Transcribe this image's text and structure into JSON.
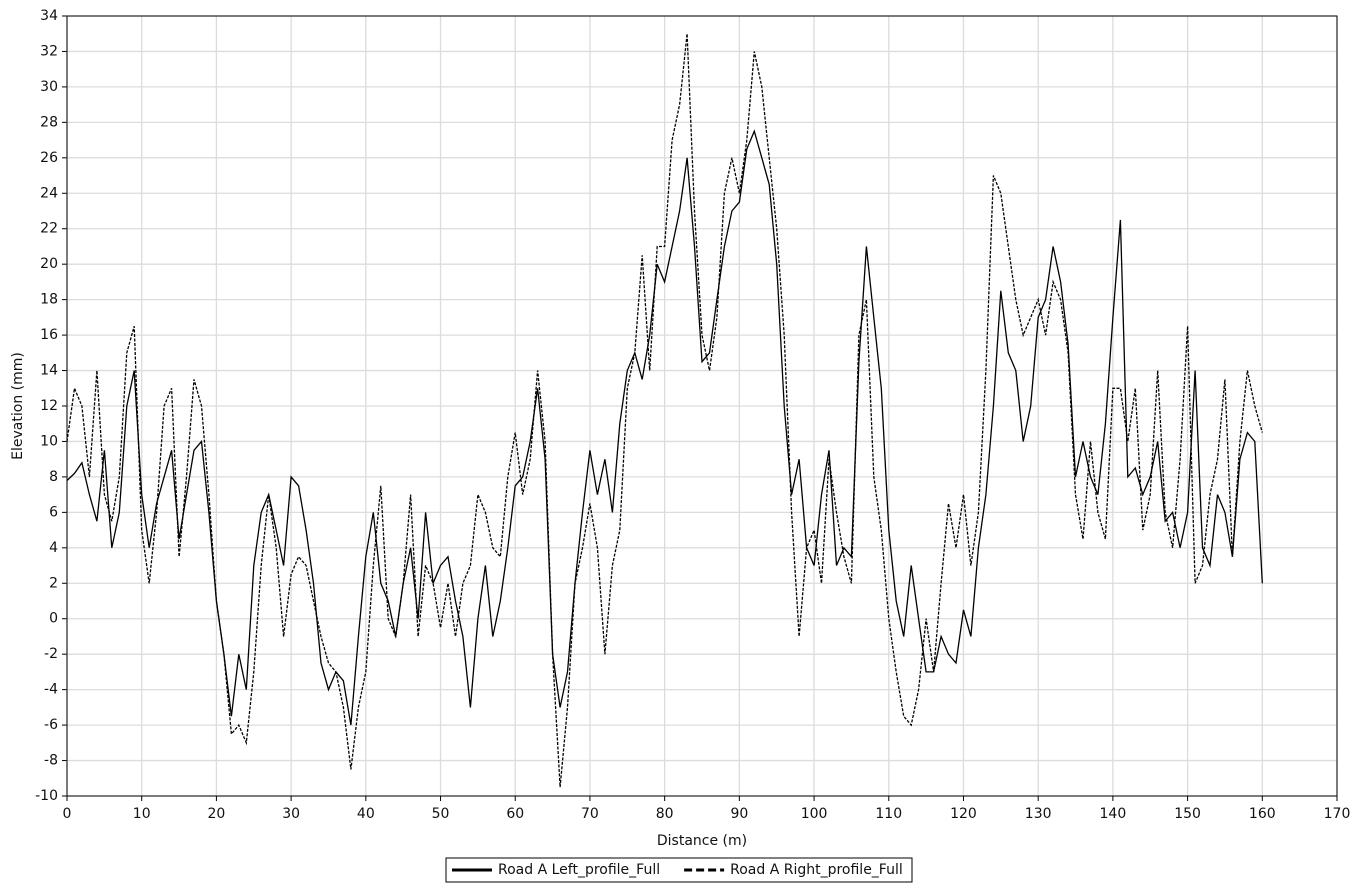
{
  "chart_data": {
    "type": "line",
    "x_label": "Distance (m)",
    "y_label": "Elevation (mm)",
    "x": [
      0,
      1,
      2,
      3,
      4,
      5,
      6,
      7,
      8,
      9,
      10,
      11,
      12,
      13,
      14,
      15,
      16,
      17,
      18,
      19,
      20,
      21,
      22,
      23,
      24,
      25,
      26,
      27,
      28,
      29,
      30,
      31,
      32,
      33,
      34,
      35,
      36,
      37,
      38,
      39,
      40,
      41,
      42,
      43,
      44,
      45,
      46,
      47,
      48,
      49,
      50,
      51,
      52,
      53,
      54,
      55,
      56,
      57,
      58,
      59,
      60,
      61,
      62,
      63,
      64,
      65,
      66,
      67,
      68,
      69,
      70,
      71,
      72,
      73,
      74,
      75,
      76,
      77,
      78,
      79,
      80,
      81,
      82,
      83,
      84,
      85,
      86,
      87,
      88,
      89,
      90,
      91,
      92,
      93,
      94,
      95,
      96,
      97,
      98,
      99,
      100,
      101,
      102,
      103,
      104,
      105,
      106,
      107,
      108,
      109,
      110,
      111,
      112,
      113,
      114,
      115,
      116,
      117,
      118,
      119,
      120,
      121,
      122,
      123,
      124,
      125,
      126,
      127,
      128,
      129,
      130,
      131,
      132,
      133,
      134,
      135,
      136,
      137,
      138,
      139,
      140,
      141,
      142,
      143,
      144,
      145,
      146,
      147,
      148,
      149,
      150,
      151,
      152,
      153,
      154,
      155,
      156,
      157,
      158,
      159,
      160
    ],
    "series": [
      {
        "name": "Road A Left_profile_Full",
        "color": "#000000",
        "line_style": "solid",
        "values": [
          7.8,
          8.2,
          8.8,
          7,
          5.5,
          9.5,
          4,
          6,
          12,
          14,
          7,
          4,
          6.5,
          8,
          9.5,
          4.5,
          7,
          9.5,
          10,
          6,
          1,
          -2,
          -5.5,
          -2,
          -4,
          3,
          6,
          7,
          5,
          3,
          8,
          7.5,
          5,
          2,
          -2.5,
          -4,
          -3,
          -3.5,
          -6,
          -1,
          3.5,
          6,
          2,
          1,
          -1,
          2,
          4,
          0,
          6,
          2,
          3,
          3.5,
          1,
          -1,
          -5,
          0,
          3,
          -1,
          1,
          4,
          7.5,
          8,
          10,
          13,
          9,
          -2,
          -5,
          -3,
          2,
          6,
          9.5,
          7,
          9,
          6,
          11,
          14,
          15,
          13.5,
          16,
          20,
          19,
          21,
          23,
          26,
          21,
          14.5,
          15,
          18,
          21,
          23,
          23.5,
          26.5,
          27.5,
          26,
          24.5,
          20,
          12,
          7,
          9,
          4,
          3,
          7,
          9.5,
          3,
          4,
          3.5,
          14.5,
          21,
          17,
          13,
          5,
          1,
          -1,
          3,
          0,
          -3,
          -3,
          -1,
          -2,
          -2.5,
          0.5,
          -1,
          4,
          7,
          12,
          18.5,
          15,
          14,
          10,
          12,
          17,
          18,
          21,
          19,
          15.5,
          8,
          10,
          8,
          7,
          11,
          17,
          22.5,
          8,
          8.5,
          7,
          8,
          10,
          5.5,
          6,
          4,
          6,
          14,
          4,
          3,
          7,
          6,
          3.5,
          9,
          10.5,
          10,
          2
        ]
      },
      {
        "name": "Road A Right_profile_Full",
        "color": "#000000",
        "line_style": "dashed",
        "values": [
          10,
          13,
          12,
          8,
          14,
          7,
          5.5,
          8,
          15,
          16.5,
          5,
          2,
          6,
          12,
          13,
          3.5,
          8,
          13.5,
          12,
          7,
          1,
          -2,
          -6.5,
          -6,
          -7,
          -3,
          3,
          7,
          4,
          -1,
          2.5,
          3.5,
          3,
          1,
          -1,
          -2.5,
          -3,
          -5,
          -8.5,
          -5,
          -3,
          3,
          7.5,
          0,
          -1,
          2,
          7,
          -1,
          3,
          2,
          -0.5,
          2,
          -1,
          2,
          3,
          7,
          6,
          4,
          3.5,
          8,
          10.5,
          7,
          9,
          14,
          10,
          -2,
          -9.5,
          -5,
          2,
          4,
          6.5,
          4,
          -2,
          3,
          5,
          13,
          15,
          20.5,
          14,
          21,
          21,
          27,
          29,
          33,
          23,
          16,
          14,
          17,
          24,
          26,
          24,
          27,
          32,
          30,
          26,
          22,
          16,
          6,
          -1,
          4,
          5,
          2,
          9,
          6,
          3.5,
          2,
          16,
          18,
          8,
          5,
          0,
          -3,
          -5.5,
          -6,
          -4,
          0,
          -3,
          2,
          6.5,
          4,
          7,
          3,
          6,
          14,
          25,
          24,
          21,
          18,
          16,
          17,
          18,
          16,
          19,
          18,
          15,
          7,
          4.5,
          10,
          6,
          4.5,
          13,
          13,
          10,
          13,
          5,
          7,
          14,
          6,
          4,
          9,
          16.5,
          2,
          3,
          7,
          9,
          13.5,
          3.5,
          10,
          14,
          12,
          10.5
        ]
      }
    ],
    "xlim": [
      0,
      170
    ],
    "xticks": [
      0,
      10,
      20,
      30,
      40,
      50,
      60,
      70,
      80,
      90,
      100,
      110,
      120,
      130,
      140,
      150,
      160,
      170
    ],
    "ylim": [
      -10,
      34
    ],
    "yticks": [
      -10,
      -8,
      -6,
      -4,
      -2,
      0,
      2,
      4,
      6,
      8,
      10,
      12,
      14,
      16,
      18,
      20,
      22,
      24,
      26,
      28,
      30,
      32,
      34
    ],
    "grid": true,
    "legend": "bottom"
  }
}
